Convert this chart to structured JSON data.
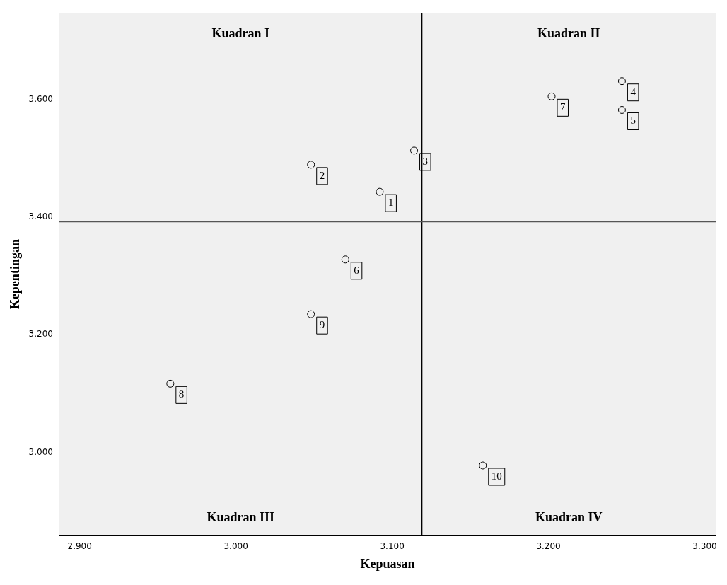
{
  "chart_data": {
    "type": "scatter",
    "xlabel": "Kepuasan",
    "ylabel": "Kepentingan",
    "x": [
      3.092,
      3.048,
      3.114,
      3.247,
      3.247,
      3.07,
      3.202,
      2.958,
      3.048,
      3.158
    ],
    "values": [
      3.443,
      3.489,
      3.513,
      3.631,
      3.582,
      3.328,
      3.605,
      3.117,
      3.235,
      2.978
    ],
    "color": "#000000",
    "marker": "circle",
    "legend": false,
    "grid": false,
    "xlim": [
      2.887,
      3.307
    ],
    "xticks": [
      {
        "value": 2.9,
        "label": "2.900"
      },
      {
        "value": 3.0,
        "label": "3.000"
      },
      {
        "value": 3.1,
        "label": "3.100"
      },
      {
        "value": 3.2,
        "label": "3.200"
      },
      {
        "value": 3.3,
        "label": "3.300"
      }
    ],
    "ylim": [
      2.859,
      3.747
    ],
    "yticks": [
      {
        "value": 3.0,
        "label": "3.000"
      },
      {
        "value": 3.2,
        "label": "3.200"
      },
      {
        "value": 3.4,
        "label": "3.400"
      },
      {
        "value": 3.6,
        "label": "3.600"
      }
    ],
    "ref_lines": [
      {
        "axis": "x",
        "value": 3.119,
        "color": "#000000"
      },
      {
        "axis": "y",
        "value": 3.392,
        "color": "#555555"
      }
    ],
    "annotations": [
      "Kuadran I",
      "Kuadran II",
      "Kuadran III",
      "Kuadran IV",
      {
        "text": "1",
        "x": 3.092,
        "y": 3.443
      },
      {
        "text": "2",
        "x": 3.048,
        "y": 3.489
      },
      {
        "text": "3",
        "x": 3.114,
        "y": 3.513
      },
      {
        "text": "4",
        "x": 3.247,
        "y": 3.631
      },
      {
        "text": "5",
        "x": 3.247,
        "y": 3.582
      },
      {
        "text": "6",
        "x": 3.07,
        "y": 3.328
      },
      {
        "text": "7",
        "x": 3.202,
        "y": 3.605
      },
      {
        "text": "8",
        "x": 2.958,
        "y": 3.117
      },
      {
        "text": "9",
        "x": 3.048,
        "y": 3.235
      },
      {
        "text": "10",
        "x": 3.158,
        "y": 2.978
      }
    ]
  }
}
